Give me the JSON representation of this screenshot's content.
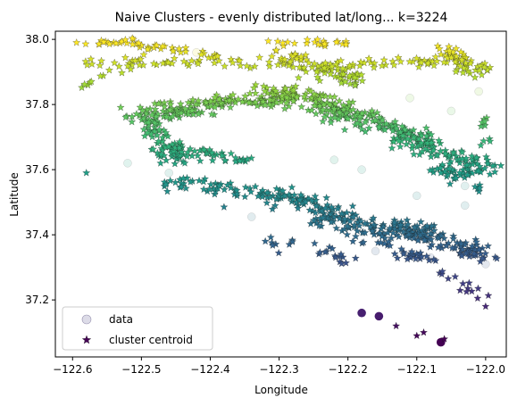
{
  "chart_data": {
    "type": "scatter",
    "title": "Naive Clusters - evenly distributed lat/long... k=3224",
    "xlabel": "Longitude",
    "ylabel": "Latitude",
    "xlim": [
      -122.625,
      -121.97
    ],
    "ylim": [
      37.025,
      38.025
    ],
    "xticks": [
      -122.6,
      -122.5,
      -122.4,
      -122.3,
      -122.2,
      -122.1,
      -122.0
    ],
    "xtick_labels": [
      "−122.6",
      "−122.5",
      "−122.4",
      "−122.3",
      "−122.2",
      "−122.1",
      "−122.0"
    ],
    "yticks": [
      37.2,
      37.4,
      37.6,
      37.8,
      38.0
    ],
    "ytick_labels": [
      "37.2",
      "37.4",
      "37.6",
      "37.8",
      "38.0"
    ],
    "grid": false,
    "colormap": "viridis",
    "legend": {
      "placement": "lower-left",
      "entries": [
        {
          "label": "data",
          "marker": "circle"
        },
        {
          "label": "cluster centroid",
          "marker": "star"
        }
      ]
    },
    "series": [
      {
        "name": "data",
        "marker": "circle",
        "points": [
          {
            "x": -122.34,
            "y": 37.455
          },
          {
            "x": -122.46,
            "y": 37.59
          },
          {
            "x": -122.52,
            "y": 37.62
          },
          {
            "x": -122.18,
            "y": 37.6
          },
          {
            "x": -122.1,
            "y": 37.52
          },
          {
            "x": -122.05,
            "y": 37.78
          },
          {
            "x": -122.01,
            "y": 37.84
          },
          {
            "x": -122.03,
            "y": 37.49
          },
          {
            "x": -122.08,
            "y": 37.33
          },
          {
            "x": -122.16,
            "y": 37.35
          },
          {
            "x": -122.22,
            "y": 37.63
          },
          {
            "x": -122.42,
            "y": 37.96
          },
          {
            "x": -122.3,
            "y": 37.98
          },
          {
            "x": -122.11,
            "y": 37.82
          },
          {
            "x": -122.03,
            "y": 37.55
          },
          {
            "x": -122.0,
            "y": 37.31
          }
        ],
        "highlighted_points": [
          {
            "x": -122.18,
            "y": 37.16
          },
          {
            "x": -122.155,
            "y": 37.15
          },
          {
            "x": -122.065,
            "y": 37.07
          }
        ]
      },
      {
        "name": "cluster centroid",
        "marker": "star",
        "clusters": [
          {
            "x1": -122.59,
            "y1": 37.99,
            "x2": -122.52,
            "y2": 37.99,
            "spread": 0.008,
            "count": 14
          },
          {
            "x1": -122.52,
            "y1": 37.99,
            "x2": -122.36,
            "y2": 37.93,
            "spread": 0.014,
            "count": 40
          },
          {
            "x1": -122.58,
            "y1": 37.93,
            "x2": -122.26,
            "y2": 37.92,
            "spread": 0.01,
            "count": 40
          },
          {
            "x1": -122.58,
            "y1": 37.86,
            "x2": -122.5,
            "y2": 37.94,
            "spread": 0.012,
            "count": 18
          },
          {
            "x1": -122.31,
            "y1": 37.99,
            "x2": -122.2,
            "y2": 37.99,
            "spread": 0.008,
            "count": 22
          },
          {
            "x1": -122.3,
            "y1": 37.95,
            "x2": -122.18,
            "y2": 37.87,
            "spread": 0.025,
            "count": 80
          },
          {
            "x1": -122.33,
            "y1": 37.85,
            "x2": -122.2,
            "y2": 37.78,
            "spread": 0.03,
            "count": 130
          },
          {
            "x1": -122.25,
            "y1": 37.92,
            "x2": -122.07,
            "y2": 37.93,
            "spread": 0.014,
            "count": 40
          },
          {
            "x1": -122.07,
            "y1": 37.98,
            "x2": -122.01,
            "y2": 37.9,
            "spread": 0.02,
            "count": 60
          },
          {
            "x1": -122.38,
            "y1": 37.81,
            "x2": -122.5,
            "y2": 37.76,
            "spread": 0.028,
            "count": 110
          },
          {
            "x1": -122.49,
            "y1": 37.76,
            "x2": -122.45,
            "y2": 37.63,
            "spread": 0.018,
            "count": 70
          },
          {
            "x1": -122.46,
            "y1": 37.66,
            "x2": -122.34,
            "y2": 37.63,
            "spread": 0.016,
            "count": 50
          },
          {
            "x1": -122.38,
            "y1": 37.82,
            "x2": -122.31,
            "y2": 37.8,
            "spread": 0.012,
            "count": 30
          },
          {
            "x1": -122.22,
            "y1": 37.78,
            "x2": -122.08,
            "y2": 37.69,
            "spread": 0.028,
            "count": 120
          },
          {
            "x1": -122.12,
            "y1": 37.7,
            "x2": -122.0,
            "y2": 37.6,
            "spread": 0.025,
            "count": 90
          },
          {
            "x1": -122.08,
            "y1": 37.62,
            "x2": -122.0,
            "y2": 37.54,
            "spread": 0.014,
            "count": 35
          },
          {
            "x1": -122.0,
            "y1": 37.76,
            "x2": -122.0,
            "y2": 37.58,
            "spread": 0.008,
            "count": 12
          },
          {
            "x1": -122.47,
            "y1": 37.57,
            "x2": -122.3,
            "y2": 37.52,
            "spread": 0.02,
            "count": 60
          },
          {
            "x1": -122.32,
            "y1": 37.53,
            "x2": -122.2,
            "y2": 37.46,
            "spread": 0.025,
            "count": 70
          },
          {
            "x1": -122.25,
            "y1": 37.45,
            "x2": -122.1,
            "y2": 37.41,
            "spread": 0.025,
            "count": 90
          },
          {
            "x1": -122.12,
            "y1": 37.42,
            "x2": -122.0,
            "y2": 37.34,
            "spread": 0.025,
            "count": 110
          },
          {
            "x1": -122.18,
            "y1": 37.4,
            "x2": -122.08,
            "y2": 37.32,
            "spread": 0.02,
            "count": 40
          },
          {
            "x1": -122.25,
            "y1": 37.36,
            "x2": -122.2,
            "y2": 37.32,
            "spread": 0.015,
            "count": 15
          },
          {
            "x1": -122.3,
            "y1": 37.38,
            "x2": -122.28,
            "y2": 37.36,
            "spread": 0.02,
            "count": 8
          },
          {
            "x1": -122.07,
            "y1": 37.3,
            "x2": -122.01,
            "y2": 37.21,
            "spread": 0.015,
            "count": 14
          }
        ],
        "outliers": [
          {
            "x": -122.38,
            "y": 37.485
          },
          {
            "x": -122.58,
            "y": 37.59
          },
          {
            "x": -122.13,
            "y": 37.12
          },
          {
            "x": -122.09,
            "y": 37.1
          },
          {
            "x": -122.0,
            "y": 37.18
          },
          {
            "x": -122.06,
            "y": 37.08
          },
          {
            "x": -122.1,
            "y": 37.09
          },
          {
            "x": -122.21,
            "y": 37.34
          },
          {
            "x": -122.32,
            "y": 37.38
          }
        ]
      }
    ]
  }
}
